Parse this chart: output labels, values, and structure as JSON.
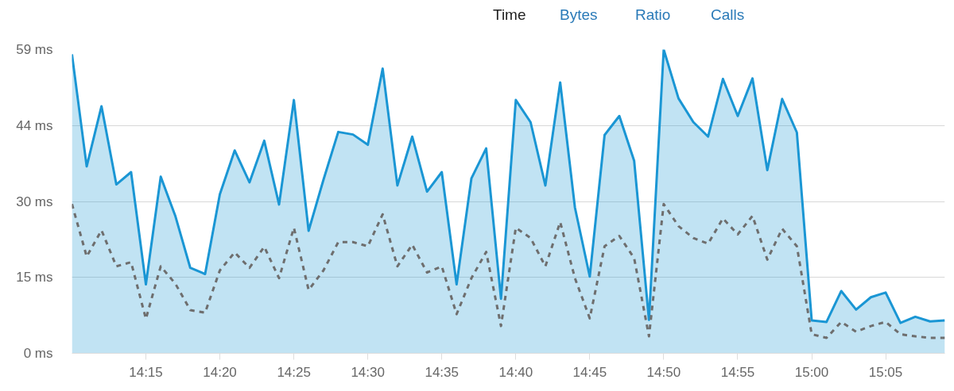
{
  "chart_data": {
    "type": "area",
    "annotations": [
      "Time",
      "Bytes",
      "Ratio",
      "Calls"
    ],
    "x": [
      14.1667,
      14.1833,
      14.2,
      14.2167,
      14.2333,
      14.25,
      14.2667,
      14.2833,
      14.3,
      14.3167,
      14.3333,
      14.35,
      14.3667,
      14.3833,
      14.4,
      14.4167,
      14.4333,
      14.45,
      14.4667,
      14.4833,
      14.5,
      14.5167,
      14.5333,
      14.55,
      14.5667,
      14.5833,
      14.6,
      14.6167,
      14.6333,
      14.65,
      14.6667,
      14.6833,
      14.7,
      14.7167,
      14.7333,
      14.75,
      14.7667,
      14.7833,
      14.8,
      14.8167,
      14.8333,
      14.85,
      14.8667,
      14.8833,
      14.9,
      14.9167,
      14.9333,
      14.95,
      14.9667,
      14.9833,
      15.0,
      15.0167,
      15.0333,
      15.05,
      15.0667,
      15.0833,
      15.1,
      15.1167,
      15.1333,
      15.15
    ],
    "series": [
      {
        "color": "#1a96d4",
        "values": [
          58.1,
          36.3,
          48.0,
          32.8,
          35.2,
          13.4,
          34.3,
          26.6,
          16.6,
          15.4,
          30.9,
          39.4,
          33.2,
          41.3,
          28.9,
          49.2,
          23.8,
          33.7,
          43.0,
          42.5,
          40.5,
          55.3,
          32.6,
          42.1,
          31.4,
          35.2,
          13.4,
          34.0,
          39.8,
          10.6,
          49.2,
          44.9,
          32.6,
          52.6,
          28.3,
          14.9,
          42.4,
          46.1,
          37.4,
          6.5,
          59.0,
          49.5,
          44.9,
          42.1,
          53.3,
          46.1,
          53.4,
          35.6,
          49.4,
          42.9,
          6.4,
          6.1,
          12.1,
          8.5,
          10.9,
          11.8,
          5.9,
          7.1,
          6.2,
          6.4
        ]
      },
      {
        "type": "line",
        "color": "#6e6e6e",
        "line_style": "dashed",
        "values": [
          29.0,
          18.8,
          23.9,
          16.9,
          17.7,
          6.7,
          16.9,
          13.5,
          8.4,
          7.9,
          16.1,
          19.6,
          16.6,
          20.7,
          14.6,
          24.4,
          12.3,
          16.1,
          21.6,
          21.6,
          20.8,
          27.0,
          16.9,
          21.1,
          15.7,
          16.9,
          7.6,
          14.6,
          19.7,
          5.3,
          24.4,
          22.4,
          16.9,
          25.5,
          14.6,
          6.8,
          20.8,
          22.8,
          18.5,
          3.3,
          29.0,
          24.7,
          22.4,
          21.3,
          26.2,
          23.1,
          26.7,
          18.2,
          24.2,
          20.8,
          3.7,
          3.0,
          6.1,
          4.2,
          5.3,
          6.1,
          3.7,
          3.3,
          3.0,
          3.0
        ]
      }
    ],
    "xlim": [
      14.1667,
      15.15
    ],
    "xticks": [
      {
        "value": 14.25,
        "label": "14:15"
      },
      {
        "value": 14.3333,
        "label": "14:20"
      },
      {
        "value": 14.4167,
        "label": "14:25"
      },
      {
        "value": 14.5,
        "label": "14:30"
      },
      {
        "value": 14.5833,
        "label": "14:35"
      },
      {
        "value": 14.6667,
        "label": "14:40"
      },
      {
        "value": 14.75,
        "label": "14:45"
      },
      {
        "value": 14.8333,
        "label": "14:50"
      },
      {
        "value": 14.9167,
        "label": "14:55"
      },
      {
        "value": 15.0,
        "label": "15:00"
      },
      {
        "value": 15.0833,
        "label": "15:05"
      }
    ],
    "ylim": [
      0,
      59
    ],
    "yticks": [
      {
        "value": 0,
        "label": "0 ms"
      },
      {
        "value": 14.75,
        "label": "15 ms"
      },
      {
        "value": 29.5,
        "label": "30 ms"
      },
      {
        "value": 44.25,
        "label": "44 ms"
      },
      {
        "value": 59,
        "label": "59 ms"
      }
    ],
    "grid": "y"
  }
}
